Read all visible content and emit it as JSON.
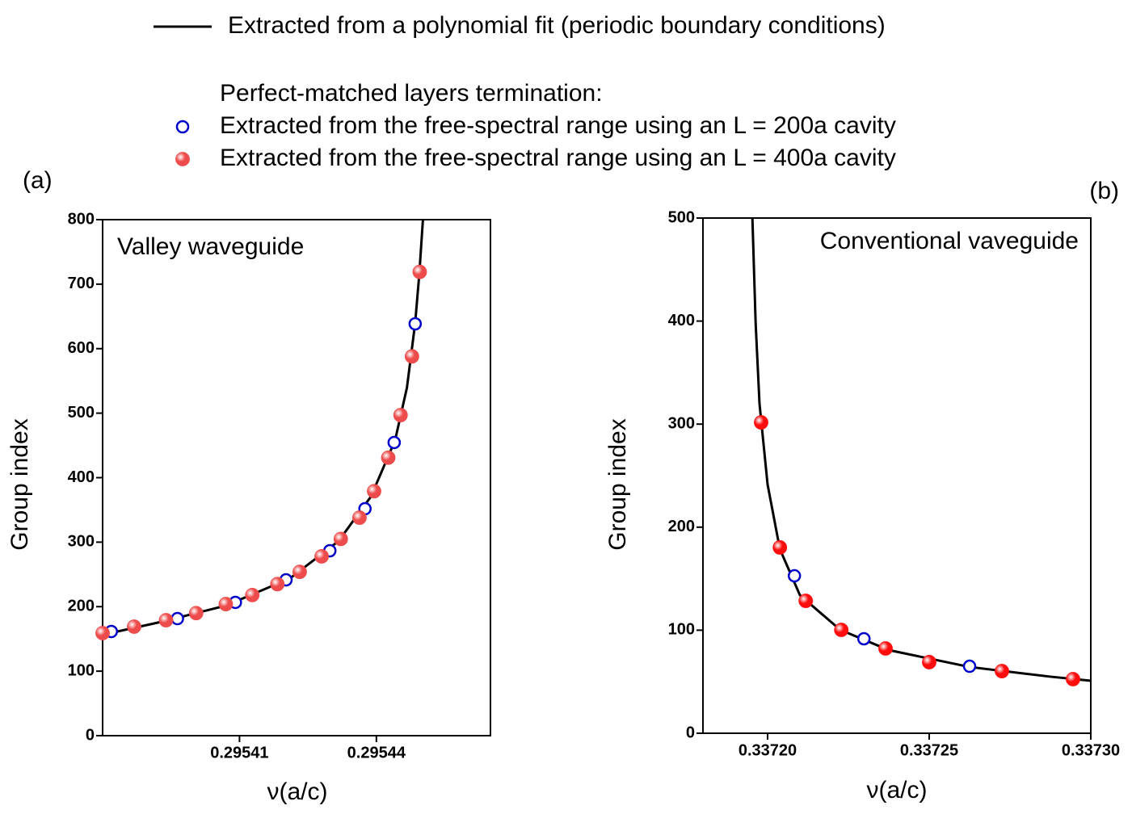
{
  "chart_data": [
    {
      "type": "scatter",
      "panel_label": "(a)",
      "annotation": "Valley waveguide",
      "legend_heading": "Perfect-matched layers termination:",
      "xlabel": "ν(a/c)",
      "ylabel": "Group index",
      "xlim": [
        0.29538,
        0.295465
      ],
      "xticks": [
        0.29541,
        0.29544
      ],
      "ylim": [
        0,
        800
      ],
      "yticks": [
        0,
        100,
        200,
        300,
        400,
        500,
        600,
        700,
        800
      ],
      "series": [
        {
          "name": "Extracted from a polynomial fit (periodic boundary conditions)",
          "mode": "line",
          "color": "#000000",
          "x": [
            0.29538,
            0.2953929,
            0.295407,
            0.2954211,
            0.2954317,
            0.2954388,
            0.2954441,
            0.2954467,
            0.2954485,
            0.2954494,
            0.2954502
          ],
          "values": [
            156.5,
            176.5,
            201.6,
            244,
            301.7,
            370.6,
            458,
            539.6,
            639.7,
            715,
            800
          ]
        },
        {
          "name": "Extracted from the free-spectral range using an L = 200a cavity",
          "mode": "open",
          "color": "#0000cc",
          "x": [
            0.2953819,
            0.2953964,
            0.2954091,
            0.2954202,
            0.2954298,
            0.2954375,
            0.2954439,
            0.2954485
          ],
          "values": [
            161.5,
            181.5,
            206.6,
            241.6,
            286.7,
            351.8,
            454.5,
            638.5
          ]
        },
        {
          "name": "Extracted from the free-spectral range using an L = 400a cavity",
          "mode": "filled",
          "color": "#ee4c4c",
          "x": [
            0.29538,
            0.2953869,
            0.2953939,
            0.2954005,
            0.295407,
            0.2954128,
            0.2954183,
            0.2954232,
            0.295428,
            0.2954322,
            0.2954363,
            0.2954395,
            0.2954426,
            0.2954453,
            0.2954478,
            0.2954495
          ],
          "values": [
            159,
            169,
            179,
            190,
            204,
            218,
            235,
            254,
            278,
            305,
            338,
            379,
            431,
            497,
            588,
            719
          ]
        }
      ]
    },
    {
      "type": "scatter",
      "panel_label": "(b)",
      "annotation": "Conventional vaveguide",
      "xlabel": "ν(a/c)",
      "ylabel": "Group index",
      "xlim": [
        0.33718,
        0.3373
      ],
      "xticks": [
        {
          "value": 0.3372,
          "label": "0.33720"
        },
        0.33725,
        {
          "value": 0.3373,
          "label": "0.33730"
        }
      ],
      "ylim": [
        0,
        500
      ],
      "yticks": [
        0,
        100,
        200,
        300,
        400,
        500
      ],
      "series": [
        {
          "mode": "line",
          "color": "#000000",
          "x": [
            0.3371953,
            0.3371963,
            0.3371975,
            0.3372,
            0.3372038,
            0.33721,
            0.3372225,
            0.3372375,
            0.3372625,
            0.3372875,
            0.3373
          ],
          "values": [
            500,
            398,
            319.7,
            241.4,
            178.7,
            134,
            100.3,
            80.7,
            64.3,
            54.9,
            50.9
          ]
        },
        {
          "mode": "open",
          "color": "#0000cc",
          "x": [
            0.3372083,
            0.3372298,
            0.3372625
          ],
          "values": [
            152.8,
            91.7,
            65
          ]
        },
        {
          "mode": "filled",
          "color": "#ff0d0d",
          "x": [
            0.337198,
            0.3372038,
            0.3372118,
            0.3372228,
            0.3372365,
            0.33725,
            0.3372725,
            0.3372945
          ],
          "values": [
            301.7,
            180.3,
            128.5,
            100.3,
            82.3,
            69,
            60.3,
            52.5
          ]
        }
      ]
    }
  ]
}
